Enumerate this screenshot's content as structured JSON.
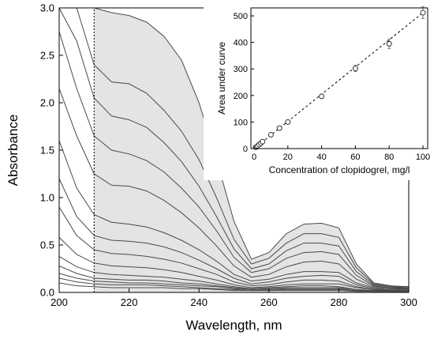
{
  "chart_data": [
    {
      "type": "line",
      "xlabel": "Wavelength, nm",
      "ylabel": "Absorbance",
      "xlim": [
        200,
        300
      ],
      "ylim": [
        0,
        3.0
      ],
      "xticks": [
        200,
        220,
        240,
        260,
        280,
        300
      ],
      "yticks": [
        0.0,
        0.5,
        1.0,
        1.5,
        2.0,
        2.5,
        3.0
      ],
      "xtick_labels": [
        "200",
        "220",
        "240",
        "260",
        "280",
        "300"
      ],
      "ytick_labels": [
        "0.0",
        "0.5",
        "1.0",
        "1.5",
        "2.0",
        "2.5",
        "3.0"
      ],
      "grid": false,
      "integration_start_nm": 210,
      "shaded_region": "area under the highest spectrum from 210 nm",
      "x": [
        200,
        205,
        210,
        215,
        220,
        225,
        230,
        235,
        240,
        245,
        250,
        255,
        260,
        265,
        270,
        275,
        280,
        285,
        290,
        295,
        300
      ],
      "series": [
        {
          "values": [
            3.0,
            3.0,
            3.0,
            2.95,
            2.92,
            2.85,
            2.7,
            2.45,
            2.0,
            1.4,
            0.75,
            0.35,
            0.42,
            0.62,
            0.72,
            0.73,
            0.68,
            0.3,
            0.1,
            0.07,
            0.06
          ]
        },
        {
          "values": [
            3.0,
            3.0,
            2.4,
            2.22,
            2.2,
            2.1,
            1.92,
            1.7,
            1.4,
            1.0,
            0.56,
            0.3,
            0.36,
            0.52,
            0.62,
            0.62,
            0.58,
            0.26,
            0.09,
            0.06,
            0.06
          ]
        },
        {
          "values": [
            3.0,
            2.65,
            2.05,
            1.86,
            1.82,
            1.74,
            1.58,
            1.38,
            1.12,
            0.8,
            0.46,
            0.25,
            0.3,
            0.44,
            0.52,
            0.52,
            0.49,
            0.22,
            0.08,
            0.06,
            0.05
          ]
        },
        {
          "values": [
            2.75,
            2.15,
            1.65,
            1.5,
            1.46,
            1.39,
            1.27,
            1.1,
            0.9,
            0.65,
            0.37,
            0.21,
            0.25,
            0.36,
            0.42,
            0.43,
            0.4,
            0.18,
            0.07,
            0.05,
            0.05
          ]
        },
        {
          "values": [
            2.15,
            1.65,
            1.25,
            1.13,
            1.12,
            1.07,
            0.97,
            0.84,
            0.68,
            0.49,
            0.28,
            0.16,
            0.19,
            0.27,
            0.32,
            0.33,
            0.3,
            0.14,
            0.06,
            0.05,
            0.04
          ]
        },
        {
          "values": [
            1.6,
            1.1,
            0.82,
            0.74,
            0.72,
            0.69,
            0.63,
            0.55,
            0.45,
            0.33,
            0.19,
            0.12,
            0.14,
            0.19,
            0.22,
            0.22,
            0.21,
            0.1,
            0.05,
            0.04,
            0.04
          ]
        },
        {
          "values": [
            1.2,
            0.8,
            0.6,
            0.55,
            0.54,
            0.52,
            0.48,
            0.42,
            0.34,
            0.25,
            0.15,
            0.09,
            0.11,
            0.15,
            0.17,
            0.18,
            0.17,
            0.08,
            0.04,
            0.04,
            0.03
          ]
        },
        {
          "values": [
            0.9,
            0.6,
            0.45,
            0.41,
            0.4,
            0.38,
            0.35,
            0.31,
            0.25,
            0.19,
            0.11,
            0.07,
            0.08,
            0.11,
            0.13,
            0.13,
            0.12,
            0.06,
            0.03,
            0.03,
            0.03
          ]
        },
        {
          "values": [
            0.58,
            0.4,
            0.31,
            0.28,
            0.27,
            0.26,
            0.24,
            0.21,
            0.17,
            0.13,
            0.08,
            0.05,
            0.06,
            0.08,
            0.09,
            0.09,
            0.09,
            0.05,
            0.03,
            0.02,
            0.02
          ]
        },
        {
          "values": [
            0.38,
            0.27,
            0.21,
            0.19,
            0.18,
            0.17,
            0.16,
            0.14,
            0.12,
            0.09,
            0.06,
            0.04,
            0.05,
            0.06,
            0.07,
            0.07,
            0.06,
            0.03,
            0.02,
            0.02,
            0.02
          ]
        },
        {
          "values": [
            0.28,
            0.2,
            0.15,
            0.14,
            0.13,
            0.13,
            0.12,
            0.1,
            0.09,
            0.07,
            0.05,
            0.03,
            0.04,
            0.05,
            0.05,
            0.05,
            0.05,
            0.03,
            0.02,
            0.02,
            0.02
          ]
        },
        {
          "values": [
            0.2,
            0.15,
            0.12,
            0.11,
            0.1,
            0.1,
            0.09,
            0.08,
            0.07,
            0.06,
            0.04,
            0.03,
            0.03,
            0.04,
            0.04,
            0.04,
            0.04,
            0.02,
            0.02,
            0.01,
            0.01
          ]
        },
        {
          "values": [
            0.15,
            0.11,
            0.09,
            0.08,
            0.08,
            0.08,
            0.07,
            0.06,
            0.05,
            0.04,
            0.03,
            0.02,
            0.02,
            0.03,
            0.03,
            0.03,
            0.03,
            0.02,
            0.01,
            0.01,
            0.01
          ]
        },
        {
          "values": [
            0.1,
            0.07,
            0.06,
            0.05,
            0.05,
            0.05,
            0.05,
            0.04,
            0.04,
            0.03,
            0.02,
            0.02,
            0.02,
            0.02,
            0.02,
            0.02,
            0.02,
            0.01,
            0.01,
            0.01,
            0.01
          ]
        }
      ]
    },
    {
      "type": "scatter",
      "xlabel": "Concentration of clopidogrel, mg/l",
      "ylabel": "Area under curve",
      "xlim": [
        0,
        100
      ],
      "ylim": [
        0,
        530
      ],
      "xticks": [
        0,
        20,
        40,
        60,
        80,
        100
      ],
      "yticks": [
        0,
        100,
        200,
        300,
        400,
        500
      ],
      "xtick_labels": [
        "0",
        "20",
        "40",
        "60",
        "80",
        "100"
      ],
      "ytick_labels": [
        "0",
        "100",
        "200",
        "300",
        "400",
        "500"
      ],
      "grid": false,
      "marker": "open circle",
      "fit_line": {
        "style": "dashed",
        "x": [
          0,
          100
        ],
        "y": [
          0,
          512
        ]
      },
      "points": [
        {
          "x": 1,
          "y": 5,
          "err": 2
        },
        {
          "x": 2,
          "y": 10,
          "err": 2
        },
        {
          "x": 3,
          "y": 15,
          "err": 3
        },
        {
          "x": 4,
          "y": 20,
          "err": 3
        },
        {
          "x": 5,
          "y": 26,
          "err": 3
        },
        {
          "x": 10,
          "y": 52,
          "err": 4
        },
        {
          "x": 15,
          "y": 77,
          "err": 4
        },
        {
          "x": 20,
          "y": 100,
          "err": 5
        },
        {
          "x": 40,
          "y": 197,
          "err": 8
        },
        {
          "x": 60,
          "y": 302,
          "err": 12
        },
        {
          "x": 80,
          "y": 395,
          "err": 18
        },
        {
          "x": 100,
          "y": 512,
          "err": 22
        }
      ]
    }
  ]
}
